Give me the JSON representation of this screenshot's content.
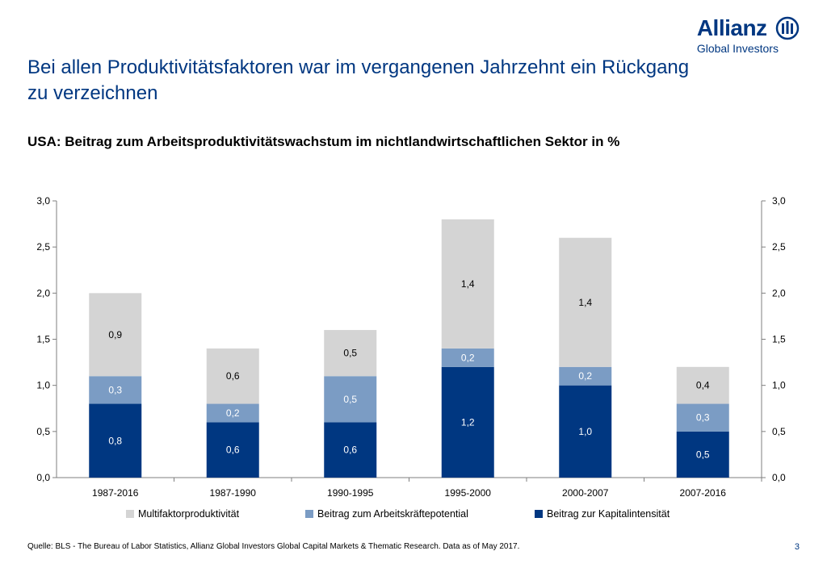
{
  "logo": {
    "brand": "Allianz",
    "sub": "Global Investors"
  },
  "slide": {
    "title": "Bei allen Produktivitätsfaktoren war im vergangenen Jahrzehnt ein Rückgang zu verzeichnen",
    "subtitle": "USA: Beitrag zum Arbeitsproduktivitätswachstum im nichtlandwirtschaftlichen Sektor in %",
    "source": "Quelle: BLS - The Bureau of Labor Statistics, Allianz Global Investors Global Capital Markets & Thematic Research. Data as of May 2017.",
    "page_number": "3"
  },
  "chart_data": {
    "type": "bar",
    "stacked": true,
    "categories": [
      "1987-2016",
      "1987-1990",
      "1990-1995",
      "1995-2000",
      "2000-2007",
      "2007-2016"
    ],
    "series": [
      {
        "name": "Beitrag zur Kapitalintensität",
        "color": "#003781",
        "values": [
          0.8,
          0.6,
          0.6,
          1.2,
          1.0,
          0.5
        ],
        "labels": [
          "0,8",
          "0,6",
          "0,6",
          "1,2",
          "1,0",
          "0,5"
        ]
      },
      {
        "name": "Beitrag zum Arbeitskräftepotential",
        "color": "#7b9cc4",
        "values": [
          0.3,
          0.2,
          0.5,
          0.2,
          0.2,
          0.3
        ],
        "labels": [
          "0,3",
          "0,2",
          "0,5",
          "0,2",
          "0,2",
          "0,3"
        ]
      },
      {
        "name": "Multifaktorproduktivität",
        "color": "#d4d4d4",
        "values": [
          0.9,
          0.6,
          0.5,
          1.4,
          1.4,
          0.4
        ],
        "labels": [
          "0,9",
          "0,6",
          "0,5",
          "1,4",
          "1,4",
          "0,4"
        ]
      }
    ],
    "legend_order": [
      "Multifaktorproduktivität",
      "Beitrag zum Arbeitskräftepotential",
      "Beitrag zur Kapitalintensität"
    ],
    "ylim": [
      0,
      3
    ],
    "yticks_left": [
      "0,0",
      "0,5",
      "1,0",
      "1,5",
      "2,0",
      "2,5",
      "3,0"
    ],
    "yticks_right": [
      "0,0",
      "0,5",
      "1,0",
      "1,5",
      "2,0",
      "2,5",
      "3,0"
    ],
    "legend_position": "bottom",
    "grid": false
  }
}
